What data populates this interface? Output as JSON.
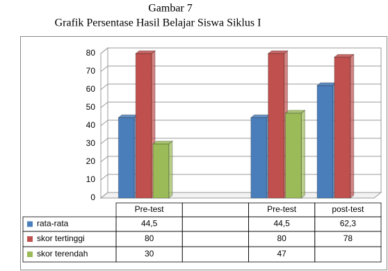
{
  "caption": "Gambar 7",
  "chart_data": {
    "type": "bar",
    "title": "Grafik Persentase Hasil Belajar Siswa Siklus I",
    "categories": [
      "Pre-test",
      null,
      "Pre-test",
      "post-test"
    ],
    "series": [
      {
        "name": "rata-rata",
        "color": "#4a7ebb",
        "values": [
          44.5,
          null,
          44.5,
          62.3
        ],
        "value_labels": [
          "44,5",
          null,
          "44,5",
          "62,3"
        ]
      },
      {
        "name": "skor tertinggi",
        "color": "#c0504d",
        "values": [
          80,
          null,
          80,
          78
        ]
      },
      {
        "name": "skor terendah",
        "color": "#9bbb59",
        "values": [
          30,
          null,
          47,
          null
        ]
      }
    ],
    "ylim": [
      0,
      80
    ],
    "yticks": [
      0,
      10,
      20,
      30,
      40,
      50,
      60,
      70,
      80
    ],
    "grid": true
  }
}
